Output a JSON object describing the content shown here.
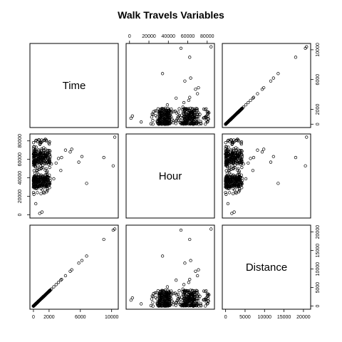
{
  "chart_data": {
    "type": "scatter",
    "title": "Walk Travels Variables",
    "variables": [
      "Time",
      "Hour",
      "Distance"
    ],
    "axes": {
      "Time": {
        "ticks": [
          0,
          2000,
          6000,
          10000
        ],
        "tick_labels": [
          "0",
          "2000",
          "6000",
          "10000"
        ]
      },
      "Hour": {
        "ticks": [
          0,
          20000,
          40000,
          60000,
          80000
        ],
        "tick_labels": [
          "0",
          "20000",
          "40000",
          "60000",
          "80000"
        ]
      },
      "Distance": {
        "ticks": [
          0,
          5000,
          10000,
          15000,
          20000
        ],
        "tick_labels": [
          "0",
          "5000",
          "10000",
          "15000",
          "20000"
        ]
      }
    },
    "grid": false,
    "legend": "none",
    "point_style": "open-circle",
    "notable_points": [
      {
        "Time": 10400,
        "Hour": 84000,
        "Distance": 20800
      },
      {
        "Time": 10200,
        "Hour": 53000,
        "Distance": 20500
      },
      {
        "Time": 9000,
        "Hour": 62000,
        "Distance": 18000
      },
      {
        "Time": 6800,
        "Hour": 34000,
        "Distance": 13500
      },
      {
        "Time": 6200,
        "Hour": 63000,
        "Distance": 12300
      },
      {
        "Time": 5800,
        "Hour": 57000,
        "Distance": 11600
      },
      {
        "Time": 4900,
        "Hour": 71000,
        "Distance": 9800
      },
      {
        "Time": 4700,
        "Hour": 68000,
        "Distance": 9400
      },
      {
        "Time": 4100,
        "Hour": 70000,
        "Distance": 8200
      },
      {
        "Time": 3600,
        "Hour": 62000,
        "Distance": 7200
      },
      {
        "Time": 3500,
        "Hour": 48000,
        "Distance": 7000
      },
      {
        "Time": 3200,
        "Hour": 61000,
        "Distance": 6400
      },
      {
        "Time": 2900,
        "Hour": 56000,
        "Distance": 5800
      },
      {
        "Time": 2600,
        "Hour": 39000,
        "Distance": 5200
      },
      {
        "Time": 2300,
        "Hour": 55000,
        "Distance": 4600
      },
      {
        "Time": 1800,
        "Hour": 28000,
        "Distance": 3600
      },
      {
        "Time": 1600,
        "Hour": 50000,
        "Distance": 3200
      },
      {
        "Time": 1400,
        "Hour": 70000,
        "Distance": 2800
      },
      {
        "Time": 1200,
        "Hour": 61000,
        "Distance": 2400
      },
      {
        "Time": 1100,
        "Hour": 3000,
        "Distance": 2200
      },
      {
        "Time": 800,
        "Hour": 1500,
        "Distance": 1600
      },
      {
        "Time": 600,
        "Hour": 38000,
        "Distance": 1200
      },
      {
        "Time": 500,
        "Hour": 24000,
        "Distance": 1000
      },
      {
        "Time": 400,
        "Hour": 66000,
        "Distance": 800
      },
      {
        "Time": 300,
        "Hour": 12000,
        "Distance": 600
      },
      {
        "Time": 200,
        "Hour": 45000,
        "Distance": 400
      },
      {
        "Time": 100,
        "Hour": 58000,
        "Distance": 200
      }
    ],
    "bulk_cloud": {
      "count": 420,
      "Time_range": [
        0,
        2200
      ],
      "Hour_range": [
        22000,
        82000
      ],
      "Distance_per_Time": 2.0
    }
  }
}
